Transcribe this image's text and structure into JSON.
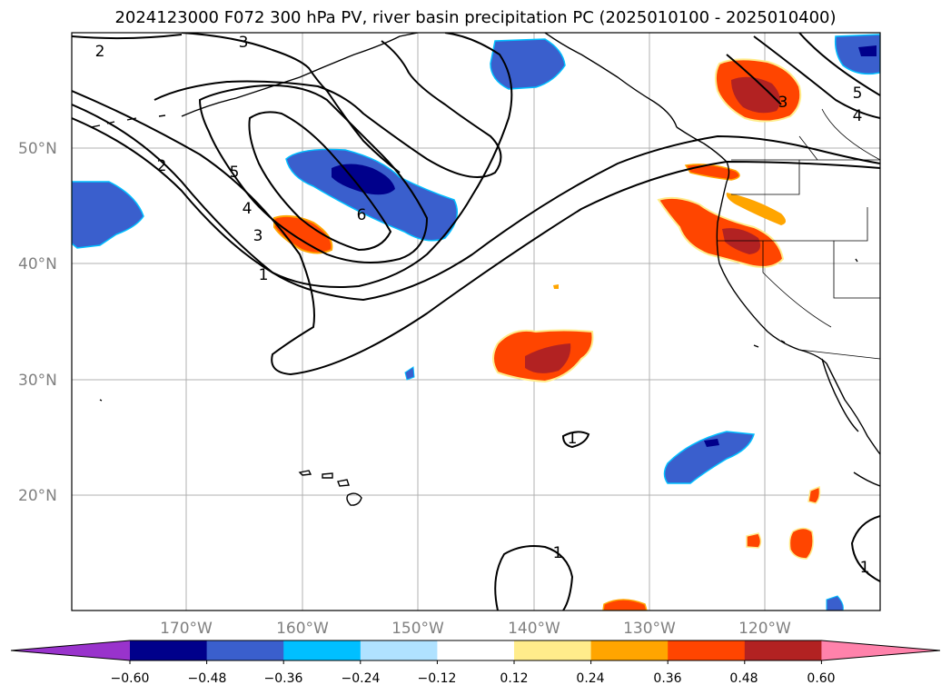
{
  "title": "2024123000 F072 300 hPa PV, river basin precipitation PC (2025010100 - 2025010400)",
  "lat_labels": [
    "50°N",
    "40°N",
    "30°N",
    "20°N"
  ],
  "lon_labels": [
    "170°W",
    "160°W",
    "150°W",
    "140°W",
    "130°W",
    "120°W"
  ],
  "contour_labels": [
    "2",
    "3",
    "2",
    "5",
    "4",
    "3",
    "1",
    "6",
    "1",
    "1",
    "5",
    "4",
    "3",
    "1"
  ],
  "colorbar": {
    "ticks": [
      "−0.60",
      "−0.48",
      "−0.36",
      "−0.24",
      "−0.12",
      "0.12",
      "0.24",
      "0.36",
      "0.48",
      "0.60"
    ],
    "colors": [
      "#9933cc",
      "#00008b",
      "#3a5fcd",
      "#00bfff",
      "#b0e2ff",
      "#ffffff",
      "#ffec8b",
      "#ffa500",
      "#ff4500",
      "#b22222",
      "#ff82ab"
    ]
  }
}
